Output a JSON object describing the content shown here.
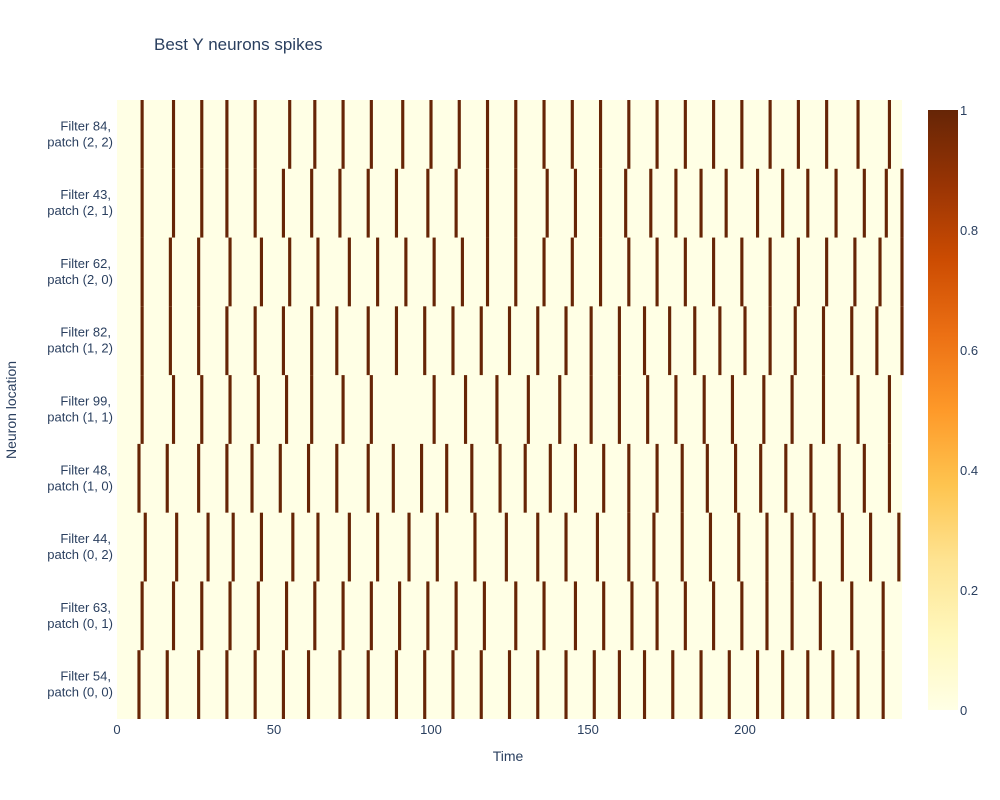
{
  "chart_data": {
    "type": "heatmap",
    "title": "Best Y neurons spikes",
    "xlabel": "Time",
    "ylabel": "Neuron location",
    "xlim": [
      0,
      250
    ],
    "x_ticks": [
      "0",
      "50",
      "100",
      "150",
      "200"
    ],
    "x_tick_values": [
      0,
      50,
      100,
      150,
      200
    ],
    "colorscale": "YlOrBr",
    "color_range": [
      0,
      1
    ],
    "colorbar_ticks": [
      "0",
      "0.2",
      "0.4",
      "0.6",
      "0.8",
      "1"
    ],
    "colorbar_tick_values": [
      0,
      0.2,
      0.4,
      0.6,
      0.8,
      1
    ],
    "cell_value_default": 0,
    "spike_value": 1,
    "rows": [
      {
        "line1": "Filter 54,",
        "line2": "patch (0, 0)",
        "spikes": [
          7,
          16,
          26,
          35,
          44,
          53,
          61,
          71,
          80,
          89,
          98,
          107,
          116,
          125,
          134,
          143,
          152,
          160,
          168,
          177,
          186,
          195,
          204,
          212,
          220,
          228,
          236,
          244
        ]
      },
      {
        "line1": "Filter 63,",
        "line2": "patch (0, 1)",
        "spikes": [
          8,
          18,
          27,
          36,
          45,
          54,
          63,
          72,
          81,
          90,
          99,
          108,
          117,
          127,
          136,
          146,
          155,
          164,
          172,
          181,
          190,
          199,
          207,
          215,
          224,
          234,
          244
        ]
      },
      {
        "line1": "Filter 44,",
        "line2": "patch (0, 2)",
        "spikes": [
          9,
          19,
          29,
          37,
          46,
          56,
          64,
          74,
          83,
          93,
          102,
          114,
          124,
          134,
          143,
          153,
          163,
          171,
          180,
          189,
          198,
          207,
          215,
          222,
          231,
          240,
          249
        ]
      },
      {
        "line1": "Filter 48,",
        "line2": "patch (1, 0)",
        "spikes": [
          7,
          16,
          26,
          35,
          43,
          52,
          61,
          70,
          80,
          88,
          97,
          105,
          113,
          122,
          130,
          138,
          146,
          155,
          163,
          172,
          180,
          188,
          197,
          205,
          213,
          221,
          230,
          238,
          246
        ]
      },
      {
        "line1": "Filter 99,",
        "line2": "patch (1, 1)",
        "spikes": [
          8,
          18,
          27,
          36,
          45,
          54,
          62,
          72,
          81,
          101,
          111,
          121,
          131,
          141,
          151,
          160,
          169,
          178,
          187,
          196,
          206,
          215,
          225,
          236,
          246
        ]
      },
      {
        "line1": "Filter 82,",
        "line2": "patch (1, 2)",
        "spikes": [
          8,
          17,
          26,
          35,
          44,
          53,
          62,
          70,
          80,
          89,
          98,
          107,
          116,
          125,
          134,
          143,
          151,
          160,
          168,
          176,
          184,
          192,
          200,
          208,
          216,
          225,
          234,
          242,
          250
        ]
      },
      {
        "line1": "Filter 62,",
        "line2": "patch (2, 0)",
        "spikes": [
          8,
          17,
          26,
          36,
          46,
          55,
          64,
          74,
          83,
          92,
          101,
          110,
          118,
          127,
          136,
          145,
          154,
          163,
          172,
          181,
          190,
          199,
          208,
          217,
          226,
          235,
          243,
          250
        ]
      },
      {
        "line1": "Filter 43,",
        "line2": "patch (2, 1)",
        "spikes": [
          8,
          18,
          27,
          35,
          44,
          53,
          62,
          71,
          80,
          89,
          99,
          108,
          118,
          127,
          137,
          146,
          154,
          162,
          170,
          178,
          186,
          194,
          204,
          212,
          220,
          229,
          238,
          245,
          250
        ]
      },
      {
        "line1": "Filter 84,",
        "line2": "patch (2, 2)",
        "spikes": [
          8,
          18,
          27,
          35,
          44,
          55,
          63,
          72,
          81,
          91,
          100,
          109,
          118,
          127,
          136,
          145,
          154,
          163,
          172,
          181,
          190,
          199,
          208,
          217,
          226,
          236,
          246
        ]
      }
    ]
  }
}
